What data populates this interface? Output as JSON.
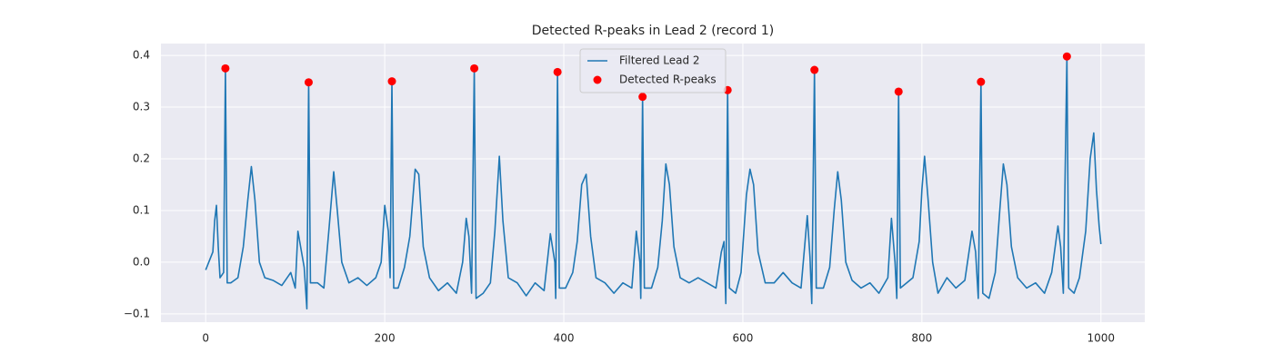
{
  "chart_data": {
    "type": "line",
    "title": "Detected R-peaks in Lead 2 (record 1)",
    "series": [
      {
        "name": "Filtered Lead 2",
        "type": "line",
        "color": "#1f77b4",
        "x": [
          0,
          8,
          10,
          12,
          14,
          16,
          20,
          22,
          24,
          28,
          36,
          42,
          47,
          51,
          55,
          60,
          66,
          75,
          85,
          95,
          100,
          103,
          106,
          110,
          113,
          115,
          117,
          125,
          132,
          138,
          143,
          147,
          152,
          160,
          170,
          180,
          190,
          196,
          200,
          204,
          206,
          208,
          210,
          215,
          222,
          228,
          234,
          238,
          243,
          250,
          260,
          270,
          280,
          287,
          291,
          294,
          297,
          300,
          302,
          310,
          318,
          323,
          328,
          332,
          338,
          348,
          358,
          368,
          378,
          385,
          390,
          391,
          393,
          395,
          402,
          410,
          415,
          420,
          425,
          430,
          436,
          446,
          456,
          466,
          476,
          481,
          485,
          486,
          488,
          490,
          498,
          505,
          510,
          514,
          518,
          523,
          530,
          540,
          550,
          560,
          570,
          576,
          579,
          581,
          583,
          585,
          592,
          598,
          604,
          608,
          612,
          617,
          625,
          635,
          645,
          655,
          665,
          672,
          675,
          677,
          680,
          682,
          690,
          697,
          702,
          706,
          710,
          715,
          722,
          732,
          742,
          752,
          762,
          766,
          770,
          772,
          774,
          776,
          783,
          790,
          797,
          800,
          803,
          807,
          812,
          818,
          828,
          838,
          848,
          856,
          860,
          863,
          866,
          868,
          875,
          882,
          887,
          891,
          895,
          900,
          907,
          917,
          927,
          937,
          945,
          952,
          955,
          958,
          962,
          964,
          970,
          976,
          983,
          988,
          992,
          995,
          998,
          1000
        ],
        "values": [
          -0.015,
          0.02,
          0.08,
          0.11,
          0.03,
          -0.03,
          -0.02,
          0.375,
          -0.04,
          -0.04,
          -0.03,
          0.03,
          0.12,
          0.185,
          0.12,
          0.0,
          -0.03,
          -0.035,
          -0.045,
          -0.02,
          -0.05,
          0.06,
          0.03,
          -0.01,
          -0.09,
          0.348,
          -0.04,
          -0.04,
          -0.05,
          0.07,
          0.175,
          0.1,
          0.0,
          -0.04,
          -0.03,
          -0.045,
          -0.03,
          0.0,
          0.11,
          0.06,
          -0.03,
          0.35,
          -0.05,
          -0.05,
          -0.01,
          0.05,
          0.18,
          0.17,
          0.03,
          -0.03,
          -0.055,
          -0.04,
          -0.06,
          0.0,
          0.085,
          0.05,
          -0.06,
          0.375,
          -0.07,
          -0.06,
          -0.04,
          0.06,
          0.205,
          0.08,
          -0.03,
          -0.04,
          -0.065,
          -0.04,
          -0.055,
          0.055,
          0.0,
          -0.07,
          0.368,
          -0.05,
          -0.05,
          -0.02,
          0.04,
          0.15,
          0.17,
          0.05,
          -0.03,
          -0.04,
          -0.06,
          -0.04,
          -0.05,
          0.06,
          0.0,
          -0.07,
          0.32,
          -0.05,
          -0.05,
          -0.01,
          0.08,
          0.19,
          0.15,
          0.03,
          -0.03,
          -0.04,
          -0.03,
          -0.04,
          -0.05,
          0.02,
          0.04,
          -0.08,
          0.333,
          -0.05,
          -0.06,
          -0.02,
          0.13,
          0.18,
          0.15,
          0.02,
          -0.04,
          -0.04,
          -0.02,
          -0.04,
          -0.05,
          0.09,
          0.01,
          -0.08,
          0.372,
          -0.05,
          -0.05,
          -0.01,
          0.1,
          0.175,
          0.12,
          0.0,
          -0.035,
          -0.05,
          -0.04,
          -0.06,
          -0.03,
          0.085,
          0.0,
          -0.07,
          0.33,
          -0.05,
          -0.04,
          -0.03,
          0.04,
          0.14,
          0.205,
          0.12,
          0.0,
          -0.06,
          -0.03,
          -0.05,
          -0.035,
          0.06,
          0.02,
          -0.07,
          0.349,
          -0.06,
          -0.07,
          -0.02,
          0.1,
          0.19,
          0.15,
          0.03,
          -0.03,
          -0.05,
          -0.04,
          -0.06,
          -0.02,
          0.07,
          0.03,
          -0.06,
          0.398,
          -0.05,
          -0.06,
          -0.03,
          0.06,
          0.2,
          0.25,
          0.14,
          0.07,
          0.035
        ]
      },
      {
        "name": "Detected R-peaks",
        "type": "scatter",
        "color": "#ff0000",
        "x": [
          22,
          115,
          208,
          300,
          393,
          488,
          583,
          680,
          774,
          866,
          962
        ],
        "values": [
          0.375,
          0.348,
          0.35,
          0.375,
          0.368,
          0.32,
          0.333,
          0.372,
          0.33,
          0.349,
          0.398
        ]
      }
    ],
    "xlim": [
      -50,
      1049
    ],
    "xticks": [
      0,
      200,
      400,
      600,
      800,
      1000
    ],
    "ylim": [
      -0.116,
      0.423
    ],
    "yticks": [
      {
        "value": -0.1,
        "label": "−0.1"
      },
      {
        "value": 0,
        "label": "0.0"
      },
      0.1,
      0.2,
      0.3,
      0.4
    ],
    "grid": true,
    "legend": "upper center"
  }
}
